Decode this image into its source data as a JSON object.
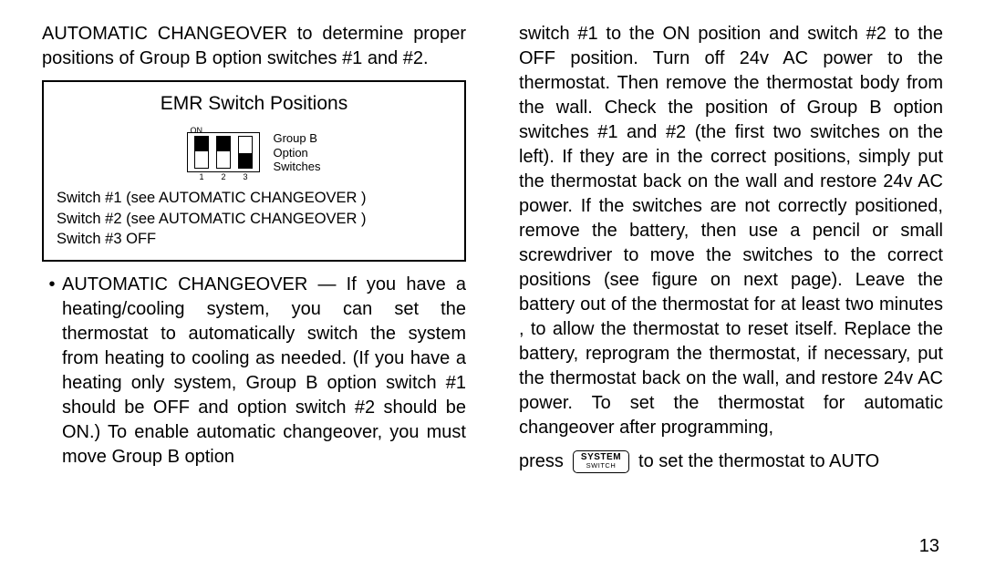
{
  "left": {
    "intro": "AUTOMATIC CHANGEOVER  to determine proper positions of Group B option switches #1 and #2.",
    "emr": {
      "title": "EMR Switch Positions",
      "on_label": "ON",
      "numbers": [
        "1",
        "2",
        "3"
      ],
      "positions": [
        "up",
        "up",
        "down"
      ],
      "group_label_lines": [
        "Group B",
        "Option",
        "Switches"
      ],
      "switch_lines": [
        "Switch #1 (see AUTOMATIC CHANGEOVER )",
        "Switch #2 (see AUTOMATIC CHANGEOVER )",
        "Switch #3  OFF"
      ]
    },
    "bullet": "AUTOMATIC CHANGEOVER  — If you have a heating/cooling system, you can set the thermostat to automatically switch the system from heating to cooling as needed.  (If you have a heating only system, Group B option switch #1 should be OFF and option switch #2 should be ON.)  To enable automatic changeover, you must move Group B option"
  },
  "right": {
    "para": "switch #1 to the ON position and switch #2 to the OFF position.  Turn off 24v AC power to the thermostat.  Then remove the thermostat body from the wall.  Check the position of Group B option switches #1 and #2 (the first two switches on the left).  If they are in the correct positions, simply put the thermostat back on the wall and restore 24v AC power.  If the switches are not correctly positioned, remove the battery, then use a pencil or small screwdriver to move the switches to the correct positions (see figure on next page).  Leave the battery out of the thermostat for at least two minutes , to allow the thermostat to reset itself.  Replace the battery, reprogram the thermostat, if necessary, put the thermostat back on the wall, and restore 24v AC power.  To set the thermostat for automatic changeover after programming,",
    "press_pre": "press",
    "system_top": "SYSTEM",
    "system_bot": "SWITCH",
    "press_post": "to set the thermostat to AUTO"
  },
  "pagenum": "13"
}
